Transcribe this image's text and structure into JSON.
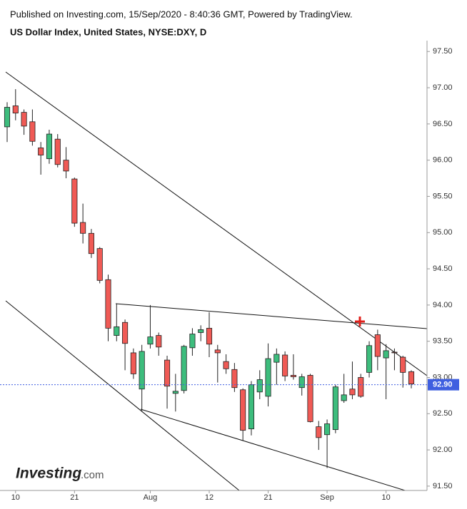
{
  "chart_data": {
    "type": "candlestick",
    "subtitle": "Published on Investing.com, 15/Sep/2020 - 8:40:36 GMT, Powered by TradingView.",
    "title": "US Dollar Index, United States, NYSE:DXY, D",
    "logo": [
      "Investing",
      ".com"
    ],
    "categories": [
      null,
      "10",
      null,
      null,
      null,
      null,
      null,
      null,
      "21",
      null,
      null,
      null,
      null,
      null,
      null,
      null,
      null,
      "Aug",
      null,
      null,
      null,
      null,
      null,
      null,
      "12",
      null,
      null,
      null,
      null,
      null,
      null,
      "21",
      null,
      null,
      null,
      null,
      null,
      null,
      "Sep",
      null,
      null,
      null,
      null,
      null,
      null,
      "10",
      null,
      null,
      null
    ],
    "open": [
      96.46,
      96.75,
      96.66,
      96.53,
      96.17,
      96.02,
      96.29,
      96.0,
      95.74,
      95.14,
      94.99,
      94.78,
      94.35,
      93.58,
      93.76,
      93.34,
      92.84,
      93.46,
      93.58,
      93.24,
      92.78,
      92.82,
      93.41,
      93.62,
      93.68,
      93.38,
      93.22,
      93.11,
      92.83,
      92.29,
      92.8,
      92.74,
      93.21,
      93.31,
      93.03,
      92.86,
      93.03,
      92.32,
      92.21,
      92.28,
      92.68,
      92.84,
      93.0,
      93.07,
      93.59,
      93.27,
      93.35,
      93.28,
      93.08
    ],
    "high": [
      96.8,
      96.98,
      96.7,
      96.7,
      96.25,
      96.42,
      96.36,
      96.18,
      95.76,
      95.4,
      95.05,
      94.8,
      94.42,
      94.02,
      93.8,
      93.4,
      93.45,
      94.0,
      93.62,
      93.3,
      93.05,
      93.45,
      93.68,
      93.72,
      93.9,
      93.45,
      93.32,
      93.2,
      92.85,
      92.95,
      93.1,
      93.47,
      93.4,
      93.36,
      93.32,
      93.05,
      93.05,
      92.4,
      92.42,
      92.9,
      93.05,
      93.22,
      93.05,
      93.5,
      93.66,
      93.46,
      93.4,
      93.3,
      93.1
    ],
    "low": [
      96.25,
      96.55,
      96.35,
      96.2,
      95.8,
      95.95,
      95.9,
      95.75,
      95.08,
      94.85,
      94.65,
      94.3,
      93.5,
      93.5,
      93.1,
      92.98,
      92.53,
      93.4,
      93.3,
      92.57,
      92.53,
      92.78,
      93.3,
      93.5,
      93.28,
      92.93,
      93.05,
      92.8,
      92.13,
      92.2,
      92.7,
      92.6,
      92.9,
      92.95,
      92.97,
      92.75,
      92.38,
      92.0,
      91.75,
      92.23,
      92.65,
      92.7,
      92.72,
      93.0,
      93.1,
      92.7,
      93.1,
      92.86,
      92.85
    ],
    "close": [
      96.73,
      96.65,
      96.47,
      96.26,
      96.07,
      96.36,
      95.94,
      95.85,
      95.13,
      94.99,
      94.71,
      94.34,
      93.68,
      93.7,
      93.47,
      93.05,
      93.36,
      93.56,
      93.42,
      92.88,
      92.81,
      93.43,
      93.6,
      93.66,
      93.46,
      93.34,
      93.12,
      92.86,
      92.27,
      92.9,
      92.97,
      93.26,
      93.32,
      93.02,
      93.01,
      93.01,
      92.39,
      92.17,
      92.36,
      92.87,
      92.76,
      92.76,
      92.74,
      93.44,
      93.29,
      93.37,
      93.34,
      93.07,
      92.91
    ],
    "up_color": "#3dbd7d",
    "down_color": "#f05a55",
    "last_value": {
      "value": 92.9,
      "label": "92.90"
    },
    "last_color": "#3f5fe0",
    "ylim": [
      91.44,
      97.65
    ],
    "yticks": [
      {
        "value": 91.5,
        "label": "91.50"
      },
      {
        "value": 92,
        "label": "92.00"
      },
      {
        "value": 92.5,
        "label": "92.50"
      },
      {
        "value": 93,
        "label": "93.00"
      },
      {
        "value": 93.5,
        "label": "93.50"
      },
      {
        "value": 94,
        "label": "94.00"
      },
      {
        "value": 94.5,
        "label": "94.50"
      },
      {
        "value": 95,
        "label": "95.00"
      },
      {
        "value": 95.5,
        "label": "95.50"
      },
      {
        "value": 96,
        "label": "96.00"
      },
      {
        "value": 96.5,
        "label": "96.50"
      },
      {
        "value": 97,
        "label": "97.00"
      },
      {
        "value": 97.5,
        "label": "97.50"
      }
    ],
    "grid": false
  }
}
